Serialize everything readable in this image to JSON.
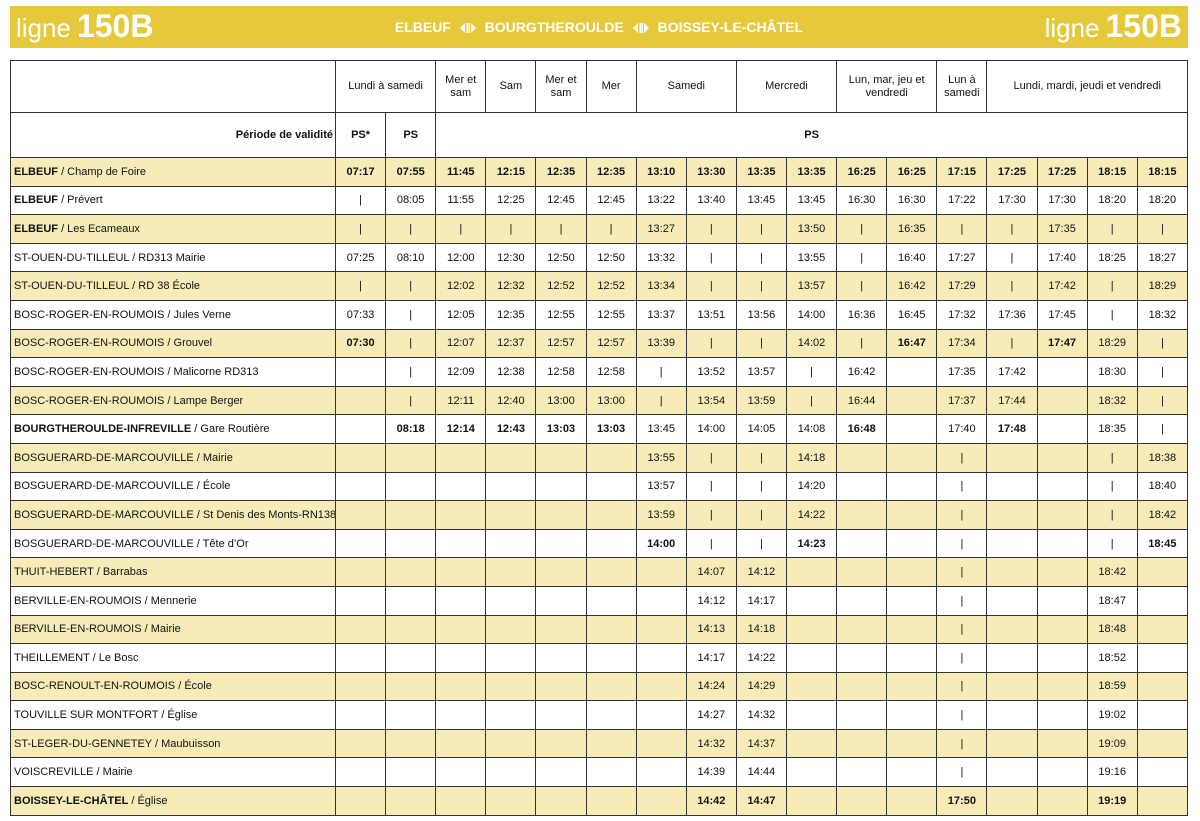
{
  "header": {
    "line_word": "ligne",
    "line_number": "150B",
    "route": [
      "ELBEUF",
      "BOURGTHEROULDE",
      "BOISSEY-LE-CHÂTEL"
    ]
  },
  "table": {
    "columns": [
      {
        "label": "Lundi à samedi",
        "span": 2
      },
      {
        "label": "Mer et sam",
        "span": 1
      },
      {
        "label": "Sam",
        "span": 1
      },
      {
        "label": "Mer et sam",
        "span": 1
      },
      {
        "label": "Mer",
        "span": 1
      },
      {
        "label": "Samedi",
        "span": 2
      },
      {
        "label": "Mercredi",
        "span": 2
      },
      {
        "label": "Lun, mar, jeu et vendredi",
        "span": 2
      },
      {
        "label": "Lun à samedi",
        "span": 1
      },
      {
        "label": "Lundi, mardi, jeudi et vendredi",
        "span": 4
      }
    ],
    "validity_label": "Période de validité",
    "validity": [
      {
        "label": "PS*",
        "span": 1
      },
      {
        "label": "PS",
        "span": 1
      },
      {
        "label": "PS",
        "span": 15
      }
    ],
    "rows": [
      {
        "town": "ELBEUF",
        "stop": "/ Champ de Foire",
        "town_bold": true,
        "bold_all": true,
        "times": [
          "07:17",
          "07:55",
          "11:45",
          "12:15",
          "12:35",
          "12:35",
          "13:10",
          "13:30",
          "13:35",
          "13:35",
          "16:25",
          "16:25",
          "17:15",
          "17:25",
          "17:25",
          "18:15",
          "18:15"
        ]
      },
      {
        "town": "ELBEUF",
        "stop": "/ Prévert",
        "town_bold": true,
        "times": [
          "|",
          "08:05",
          "11:55",
          "12:25",
          "12:45",
          "12:45",
          "13:22",
          "13:40",
          "13:45",
          "13:45",
          "16:30",
          "16:30",
          "17:22",
          "17:30",
          "17:30",
          "18:20",
          "18:20"
        ]
      },
      {
        "town": "ELBEUF",
        "stop": "/ Les Ecameaux",
        "town_bold": true,
        "times": [
          "|",
          "|",
          "|",
          "|",
          "|",
          "|",
          "13:27",
          "|",
          "|",
          "13:50",
          "|",
          "16:35",
          "|",
          "|",
          "17:35",
          "|",
          "|"
        ]
      },
      {
        "town": "ST-OUEN-DU-TILLEUL",
        "stop": "/ RD313 Mairie",
        "times": [
          "07:25",
          "08:10",
          "12:00",
          "12:30",
          "12:50",
          "12:50",
          "13:32",
          "|",
          "|",
          "13:55",
          "|",
          "16:40",
          "17:27",
          "|",
          "17:40",
          "18:25",
          "18:27"
        ]
      },
      {
        "town": "ST-OUEN-DU-TILLEUL",
        "stop": "/ RD 38 École",
        "times": [
          "|",
          "|",
          "12:02",
          "12:32",
          "12:52",
          "12:52",
          "13:34",
          "|",
          "|",
          "13:57",
          "|",
          "16:42",
          "17:29",
          "|",
          "17:42",
          "|",
          "18:29"
        ]
      },
      {
        "town": "BOSC-ROGER-EN-ROUMOIS",
        "stop": "/ Jules Verne",
        "times": [
          "07:33",
          "|",
          "12:05",
          "12:35",
          "12:55",
          "12:55",
          "13:37",
          "13:51",
          "13:56",
          "14:00",
          "16:36",
          "16:45",
          "17:32",
          "17:36",
          "17:45",
          "|",
          "18:32"
        ]
      },
      {
        "town": "BOSC-ROGER-EN-ROUMOIS",
        "stop": "/ Grouvel",
        "bold_cells": [
          0,
          11,
          14
        ],
        "times": [
          "07:30",
          "|",
          "12:07",
          "12:37",
          "12:57",
          "12:57",
          "13:39",
          "|",
          "|",
          "14:02",
          "|",
          "16:47",
          "17:34",
          "|",
          "17:47",
          "18:29",
          "|"
        ]
      },
      {
        "town": "BOSC-ROGER-EN-ROUMOIS",
        "stop": "/ Malicorne RD313",
        "times": [
          null,
          "|",
          "12:09",
          "12:38",
          "12:58",
          "12:58",
          "|",
          "13:52",
          "13:57",
          "|",
          "16:42",
          null,
          "17:35",
          "17:42",
          null,
          "18:30",
          "|"
        ]
      },
      {
        "town": "BOSC-ROGER-EN-ROUMOIS",
        "stop": "/ Lampe Berger",
        "times": [
          null,
          "|",
          "12:11",
          "12:40",
          "13:00",
          "13:00",
          "|",
          "13:54",
          "13:59",
          "|",
          "16:44",
          null,
          "17:37",
          "17:44",
          null,
          "18:32",
          "|"
        ]
      },
      {
        "town": "BOURGTHEROULDE-INFREVILLE",
        "stop": "/ Gare Routière",
        "town_bold": true,
        "bold_cells": [
          1,
          2,
          3,
          4,
          5,
          10,
          13
        ],
        "times": [
          null,
          "08:18",
          "12:14",
          "12:43",
          "13:03",
          "13:03",
          "13:45",
          "14:00",
          "14:05",
          "14:08",
          "16:48",
          null,
          "17:40",
          "17:48",
          null,
          "18:35",
          "|"
        ]
      },
      {
        "town": "BOSGUERARD-DE-MARCOUVILLE",
        "stop": "/ Mairie",
        "times": [
          null,
          null,
          null,
          null,
          null,
          null,
          "13:55",
          "|",
          "|",
          "14:18",
          null,
          null,
          "|",
          null,
          null,
          "|",
          "18:38"
        ]
      },
      {
        "town": "BOSGUERARD-DE-MARCOUVILLE",
        "stop": "/ École",
        "times": [
          null,
          null,
          null,
          null,
          null,
          null,
          "13:57",
          "|",
          "|",
          "14:20",
          null,
          null,
          "|",
          null,
          null,
          "|",
          "18:40"
        ]
      },
      {
        "town": "BOSGUERARD-DE-MARCOUVILLE",
        "stop": "/ St Denis des Monts-RN138",
        "times": [
          null,
          null,
          null,
          null,
          null,
          null,
          "13:59",
          "|",
          "|",
          "14:22",
          null,
          null,
          "|",
          null,
          null,
          "|",
          "18:42"
        ]
      },
      {
        "town": "BOSGUERARD-DE-MARCOUVILLE",
        "stop": "/ Tête d’Or",
        "bold_cells": [
          6,
          9,
          16
        ],
        "times": [
          null,
          null,
          null,
          null,
          null,
          null,
          "14:00",
          "|",
          "|",
          "14:23",
          null,
          null,
          "|",
          null,
          null,
          "|",
          "18:45"
        ]
      },
      {
        "town": "THUIT-HEBERT",
        "stop": "/ Barrabas",
        "times": [
          null,
          null,
          null,
          null,
          null,
          null,
          null,
          "14:07",
          "14:12",
          null,
          null,
          null,
          "|",
          null,
          null,
          "18:42",
          null
        ]
      },
      {
        "town": "BERVILLE-EN-ROUMOIS",
        "stop": "/ Mennerie",
        "times": [
          null,
          null,
          null,
          null,
          null,
          null,
          null,
          "14:12",
          "14:17",
          null,
          null,
          null,
          "|",
          null,
          null,
          "18:47",
          null
        ]
      },
      {
        "town": "BERVILLE-EN-ROUMOIS",
        "stop": "/ Mairie",
        "times": [
          null,
          null,
          null,
          null,
          null,
          null,
          null,
          "14:13",
          "14:18",
          null,
          null,
          null,
          "|",
          null,
          null,
          "18:48",
          null
        ]
      },
      {
        "town": "THEILLEMENT",
        "stop": "/ Le Bosc",
        "times": [
          null,
          null,
          null,
          null,
          null,
          null,
          null,
          "14:17",
          "14:22",
          null,
          null,
          null,
          "|",
          null,
          null,
          "18:52",
          null
        ]
      },
      {
        "town": "BOSC-RENOULT-EN-ROUMOIS",
        "stop": "/ École",
        "times": [
          null,
          null,
          null,
          null,
          null,
          null,
          null,
          "14:24",
          "14:29",
          null,
          null,
          null,
          "|",
          null,
          null,
          "18:59",
          null
        ]
      },
      {
        "town": "TOUVILLE SUR MONTFORT",
        "stop": "/ Église",
        "times": [
          null,
          null,
          null,
          null,
          null,
          null,
          null,
          "14:27",
          "14:32",
          null,
          null,
          null,
          "|",
          null,
          null,
          "19:02",
          null
        ]
      },
      {
        "town": "ST-LEGER-DU-GENNETEY",
        "stop": "/ Maubuisson",
        "times": [
          null,
          null,
          null,
          null,
          null,
          null,
          null,
          "14:32",
          "14:37",
          null,
          null,
          null,
          "|",
          null,
          null,
          "19:09",
          null
        ]
      },
      {
        "town": "VOISCREVILLE",
        "stop": "/ Mairie",
        "times": [
          null,
          null,
          null,
          null,
          null,
          null,
          null,
          "14:39",
          "14:44",
          null,
          null,
          null,
          "|",
          null,
          null,
          "19:16",
          null
        ]
      },
      {
        "town": "BOISSEY-LE-CHÂTEL",
        "stop": "/ Église",
        "town_bold": true,
        "bold_all": true,
        "times": [
          null,
          null,
          null,
          null,
          null,
          null,
          null,
          "14:42",
          "14:47",
          null,
          null,
          null,
          "17:50",
          null,
          null,
          "19:19",
          null
        ]
      }
    ]
  }
}
